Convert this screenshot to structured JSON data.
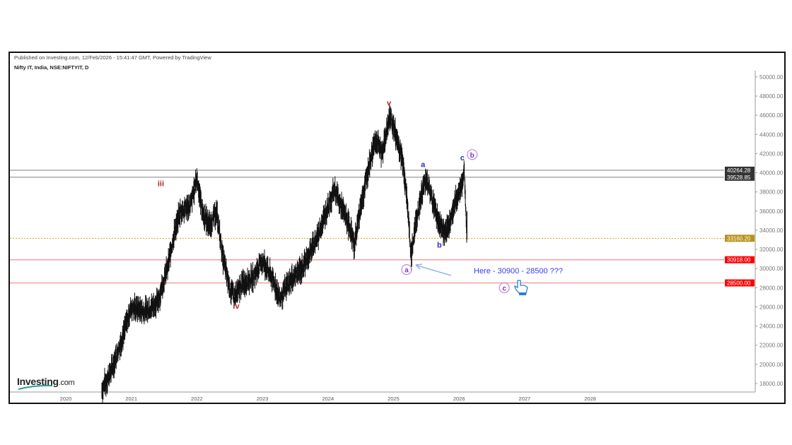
{
  "header": {
    "published": "Published on Investing.com, 12/Feb/2026 - 15:41:47 GMT, Powered by TradingView",
    "symbol": "Nifty IT, India, NSE:NIFTYIT, D"
  },
  "logo": {
    "brand": "Investing",
    "suffix": ".com"
  },
  "chart_data": {
    "type": "line",
    "title": "Nifty IT, India, NSE:NIFTYIT, D",
    "x_ticks": [
      "2020",
      "2021",
      "2022",
      "2023",
      "2024",
      "2025",
      "2026",
      "2027",
      "2028"
    ],
    "y_ticks": [
      "18000.00",
      "20000.00",
      "22000.00",
      "24000.00",
      "26000.00",
      "28000.00",
      "30000.00",
      "32000.00",
      "34000.00",
      "36000.00",
      "38000.00",
      "40000.00",
      "42000.00",
      "44000.00",
      "46000.00",
      "48000.00",
      "50000.00"
    ],
    "ylim": [
      17000,
      50300
    ],
    "xlim": [
      2019.55,
      2029.0
    ],
    "price_waypoints": [
      [
        2020.55,
        17300
      ],
      [
        2020.7,
        19500
      ],
      [
        2020.85,
        22500
      ],
      [
        2021.0,
        26000
      ],
      [
        2021.2,
        25500
      ],
      [
        2021.4,
        26500
      ],
      [
        2021.55,
        30000
      ],
      [
        2021.65,
        33500
      ],
      [
        2021.75,
        36000
      ],
      [
        2021.9,
        36500
      ],
      [
        2022.0,
        39400
      ],
      [
        2022.1,
        35500
      ],
      [
        2022.2,
        34500
      ],
      [
        2022.3,
        36000
      ],
      [
        2022.4,
        31000
      ],
      [
        2022.5,
        28000
      ],
      [
        2022.58,
        27000
      ],
      [
        2022.7,
        28500
      ],
      [
        2022.85,
        29000
      ],
      [
        2023.0,
        30800
      ],
      [
        2023.15,
        29000
      ],
      [
        2023.27,
        26800
      ],
      [
        2023.4,
        28500
      ],
      [
        2023.6,
        30000
      ],
      [
        2023.75,
        32000
      ],
      [
        2023.85,
        33500
      ],
      [
        2024.0,
        36500
      ],
      [
        2024.1,
        38300
      ],
      [
        2024.2,
        36500
      ],
      [
        2024.32,
        34500
      ],
      [
        2024.4,
        32500
      ],
      [
        2024.5,
        36500
      ],
      [
        2024.62,
        40500
      ],
      [
        2024.72,
        43500
      ],
      [
        2024.82,
        42000
      ],
      [
        2024.95,
        46000
      ],
      [
        2025.05,
        43500
      ],
      [
        2025.15,
        41000
      ],
      [
        2025.22,
        36000
      ],
      [
        2025.27,
        31000
      ],
      [
        2025.32,
        34000
      ],
      [
        2025.4,
        37000
      ],
      [
        2025.5,
        39500
      ],
      [
        2025.58,
        37500
      ],
      [
        2025.68,
        35000
      ],
      [
        2025.8,
        33500
      ],
      [
        2025.88,
        35500
      ],
      [
        2025.97,
        37500
      ],
      [
        2026.05,
        39000
      ],
      [
        2026.08,
        40264
      ],
      [
        2026.1,
        36500
      ],
      [
        2026.12,
        33160
      ]
    ],
    "levels": [
      {
        "value": 40264.28,
        "label": "40264.28",
        "color": "#aaaaaa",
        "tag": "#333333",
        "style": "solid"
      },
      {
        "value": 39528.85,
        "label": "39528.85",
        "color": "#aaaaaa",
        "tag": "#333333",
        "style": "solid"
      },
      {
        "value": 33160.2,
        "label": "33160.20",
        "color": "#c9a227",
        "tag": "#b8901a",
        "style": "dotted"
      },
      {
        "value": 30918.0,
        "label": "30918.00",
        "color": "#f5a0a0",
        "tag": "#ff0000",
        "style": "solid"
      },
      {
        "value": 28500.0,
        "label": "28500.00",
        "color": "#f5a0a0",
        "tag": "#ff0000",
        "style": "solid"
      }
    ],
    "wave_labels": [
      {
        "text": "iii",
        "t": 2021.45,
        "v": 38600,
        "color": "#b22222",
        "circle": false
      },
      {
        "text": "iv",
        "t": 2022.6,
        "v": 25800,
        "color": "#b22222",
        "circle": false
      },
      {
        "text": "v",
        "t": 2024.93,
        "v": 47000,
        "color": "#b22222",
        "circle": false
      },
      {
        "text": "a",
        "t": 2025.45,
        "v": 40600,
        "color": "#2a2ad0",
        "circle": false
      },
      {
        "text": "b",
        "t": 2025.7,
        "v": 32200,
        "color": "#2a2ad0",
        "circle": false
      },
      {
        "text": "c",
        "t": 2026.05,
        "v": 41300,
        "color": "#2a2ad0",
        "circle": false
      },
      {
        "text": "b",
        "t": 2026.2,
        "v": 41600,
        "color": "#8a2be2",
        "circle": true
      },
      {
        "text": "a",
        "t": 2025.2,
        "v": 29600,
        "color": "#8a2be2",
        "circle": true
      },
      {
        "text": "c",
        "t": 2026.69,
        "v": 27700,
        "color": "#8a2be2",
        "circle": true
      }
    ],
    "annotation": {
      "text": "Here - 30900 - 28500 ???",
      "color": "#3a3af0"
    }
  }
}
